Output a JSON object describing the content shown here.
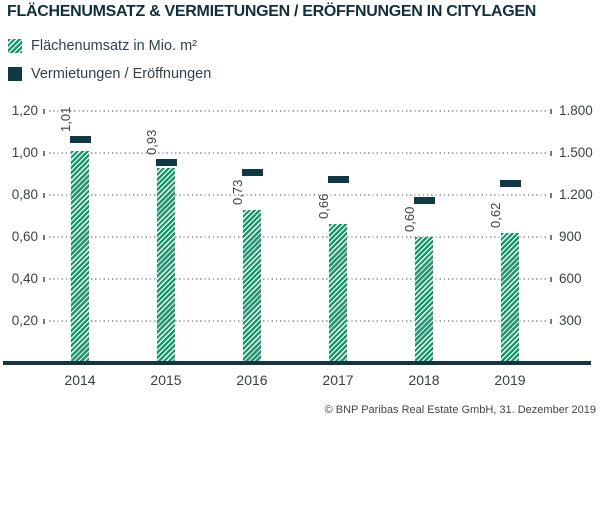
{
  "title": "FLÄCHENUMSATZ & VERMIETUNGEN / ERÖFFNUNGEN IN CITYLAGEN",
  "legend": [
    {
      "label": "Flächenumsatz in Mio. m²",
      "swatch": "hatched-green-bar"
    },
    {
      "label": "Vermietungen / Eröffnungen",
      "swatch": "solid-navy-marker"
    }
  ],
  "footer": "© BNP Paribas Real Estate GmbH, 31. Dezember 2019",
  "colors": {
    "green": "#169a6a",
    "navy": "#0f3a45",
    "grid": "#a7abae",
    "text": "#3d4245"
  },
  "chart_data": {
    "type": "bar",
    "categories": [
      "2014",
      "2015",
      "2016",
      "2017",
      "2018",
      "2019"
    ],
    "series": [
      {
        "name": "Flächenumsatz in Mio. m²",
        "axis": "left",
        "style": "hatched-bar",
        "values": [
          1.01,
          0.93,
          0.73,
          0.66,
          0.6,
          0.62
        ],
        "labels": [
          "1,01",
          "0,93",
          "0,73",
          "0,66",
          "0,60",
          "0,62"
        ]
      },
      {
        "name": "Vermietungen / Eröffnungen",
        "axis": "right",
        "style": "dash-marker",
        "values": [
          1600,
          1430,
          1360,
          1310,
          1160,
          1280
        ]
      }
    ],
    "left_axis": {
      "ticks": [
        {
          "value": 1.2,
          "label": "1,20"
        },
        {
          "value": 1.0,
          "label": "1,00"
        },
        {
          "value": 0.8,
          "label": "0,80"
        },
        {
          "value": 0.6,
          "label": "0,60"
        },
        {
          "value": 0.4,
          "label": "0,40"
        },
        {
          "value": 0.2,
          "label": "0,20"
        }
      ],
      "range": [
        0,
        1.3
      ]
    },
    "right_axis": {
      "ticks": [
        {
          "value": 1800,
          "label": "1.800"
        },
        {
          "value": 1500,
          "label": "1.500"
        },
        {
          "value": 1200,
          "label": "1.200"
        },
        {
          "value": 900,
          "label": "900"
        },
        {
          "value": 600,
          "label": "600"
        },
        {
          "value": 300,
          "label": "300"
        }
      ],
      "range": [
        0,
        1950
      ]
    },
    "grid": true,
    "legend_position": "top-left"
  }
}
